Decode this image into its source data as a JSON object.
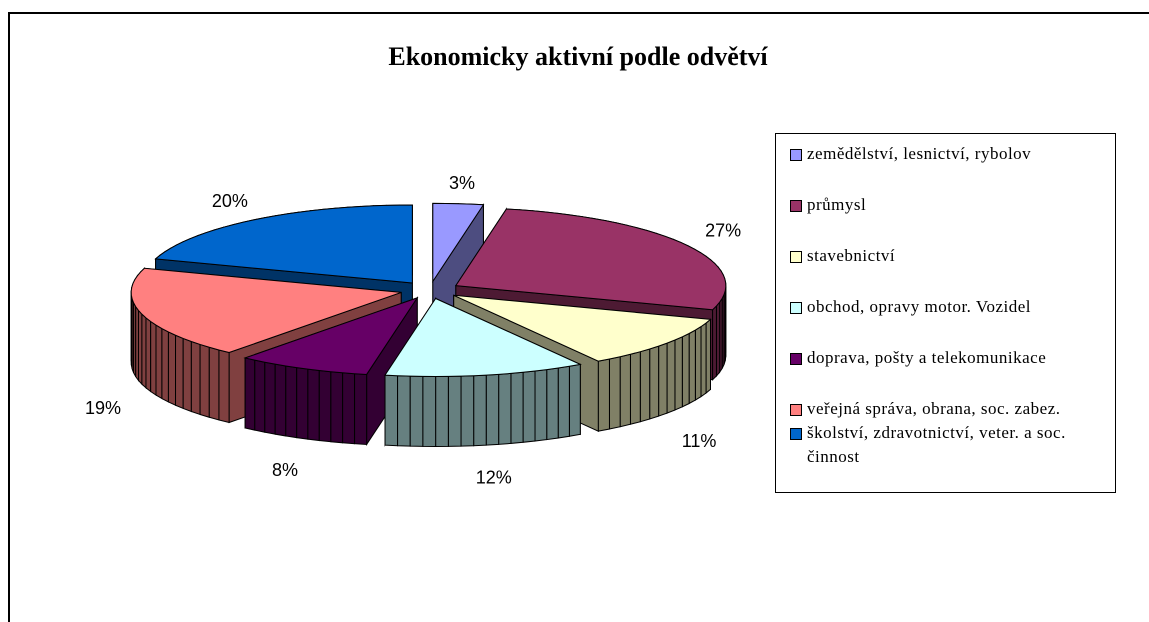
{
  "chart_data": {
    "type": "pie",
    "title": "Ekonomicky aktivní podle odvětví",
    "categories": [
      "zemědělství, lesnictví, rybolov",
      "průmysl",
      "stavebnictví",
      "obchod, opravy motor. Vozidel",
      "doprava, pošty a telekomunikace",
      "veřejná správa, obrana, soc. zabez.",
      "školství, zdravotnictví, veter. a soc. činnost"
    ],
    "values": [
      3,
      27,
      11,
      12,
      8,
      19,
      20
    ],
    "value_labels": [
      "3%",
      "27%",
      "11%",
      "12%",
      "8%",
      "19%",
      "20%"
    ],
    "colors": [
      "#9999ff",
      "#993366",
      "#ffffcc",
      "#ccffff",
      "#660066",
      "#ff8080",
      "#0066cc"
    ],
    "legend": "right"
  }
}
